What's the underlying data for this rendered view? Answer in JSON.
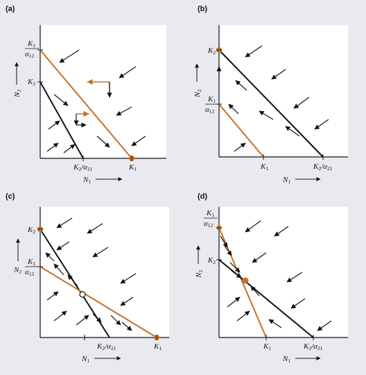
{
  "panels": [
    {
      "id": "a",
      "label": "(a)",
      "y_tick_top": {
        "num": "K1",
        "den": "α12"
      },
      "y_tick_low": "K2",
      "x_tick_left": "K2/α21",
      "x_tick_right": "K1",
      "x_axis": "N1",
      "y_axis": "N2"
    },
    {
      "id": "b",
      "label": "(b)",
      "y_tick_top": "K2",
      "y_tick_low": {
        "num": "K1",
        "den": "α12"
      },
      "x_tick_left": "K1",
      "x_tick_right": "K2/α21",
      "x_axis": "N1",
      "y_axis": "N2"
    },
    {
      "id": "c",
      "label": "(c)",
      "y_tick_top": "K2",
      "y_tick_low": {
        "num": "K1",
        "den": "α12"
      },
      "x_tick_left": "K2/α21",
      "x_tick_right": "K1",
      "x_axis": "N1",
      "y_axis": "N2"
    },
    {
      "id": "d",
      "label": "(d)",
      "y_tick_top": {
        "num": "K1",
        "den": "α12"
      },
      "y_tick_low": "K2",
      "x_tick_left": "K1",
      "x_tick_right": "K2/α21",
      "x_axis": "N1",
      "y_axis": "N2"
    }
  ],
  "colors": {
    "background": "#e9eaf0",
    "plot": "#ffffff",
    "black_isocline": "#111111",
    "orange_isocline": "#c87022",
    "arrow": "#111111"
  }
}
